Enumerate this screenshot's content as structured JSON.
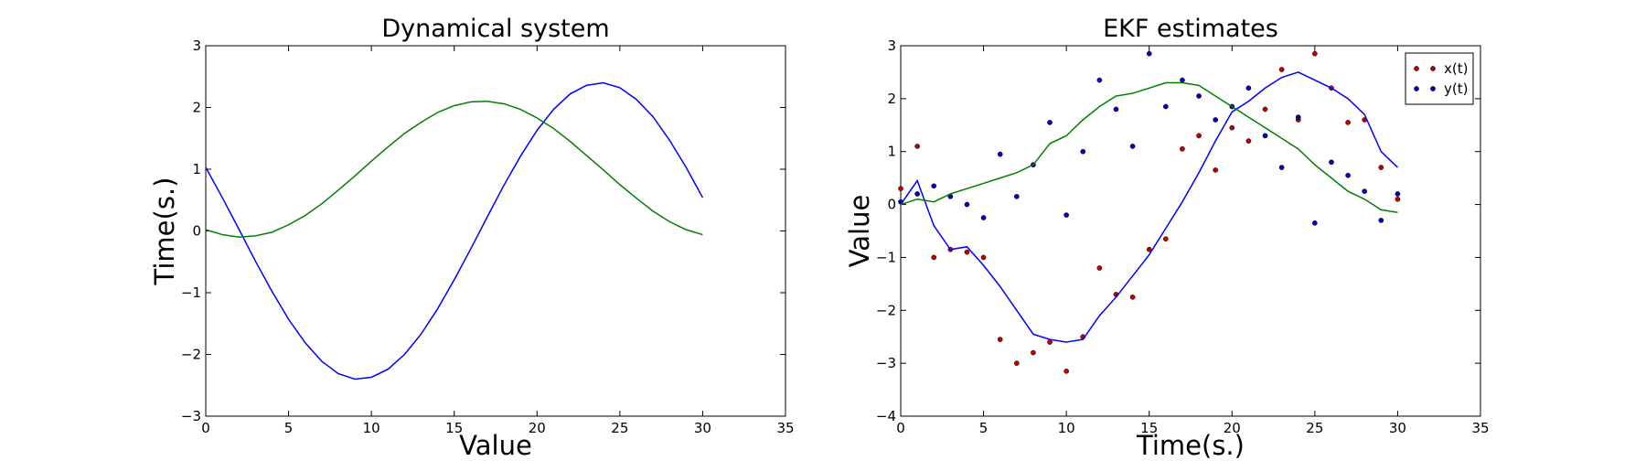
{
  "chart_data": [
    {
      "type": "line",
      "title": "Dynamical system",
      "xlabel": "Value",
      "ylabel": "Time(s.)",
      "x": [
        0,
        1,
        2,
        3,
        4,
        5,
        6,
        7,
        8,
        9,
        10,
        11,
        12,
        13,
        14,
        15,
        16,
        17,
        18,
        19,
        20,
        21,
        22,
        23,
        24,
        25,
        26,
        27,
        28,
        29,
        30
      ],
      "series": [
        {
          "color": "#0000ff",
          "values": [
            1.03,
            0.54,
            0.03,
            -0.49,
            -0.98,
            -1.43,
            -1.81,
            -2.11,
            -2.31,
            -2.4,
            -2.37,
            -2.24,
            -2.0,
            -1.67,
            -1.26,
            -0.79,
            -0.29,
            0.23,
            0.74,
            1.21,
            1.63,
            1.97,
            2.22,
            2.36,
            2.4,
            2.32,
            2.13,
            1.85,
            1.47,
            1.03,
            0.54
          ]
        },
        {
          "color": "#008000",
          "values": [
            0.02,
            -0.06,
            -0.1,
            -0.08,
            -0.02,
            0.1,
            0.25,
            0.44,
            0.66,
            0.89,
            1.13,
            1.36,
            1.58,
            1.76,
            1.92,
            2.03,
            2.09,
            2.1,
            2.06,
            1.97,
            1.83,
            1.66,
            1.45,
            1.22,
            0.99,
            0.75,
            0.53,
            0.32,
            0.15,
            0.02,
            -0.06
          ]
        }
      ],
      "xlim": [
        0,
        35
      ],
      "xticks": [
        0,
        5,
        10,
        15,
        20,
        25,
        30,
        35
      ],
      "ylim": [
        -3,
        3
      ],
      "yticks": [
        {
          "value": -3,
          "label": "−3"
        },
        {
          "value": -2,
          "label": "−2"
        },
        {
          "value": -1,
          "label": "−1"
        },
        0,
        1,
        2,
        3
      ]
    },
    {
      "type": "scatter",
      "title": "EKF estimates",
      "xlabel": "Time(s.)",
      "ylabel": "Value",
      "x": [
        0,
        1,
        2,
        3,
        4,
        5,
        6,
        7,
        8,
        9,
        10,
        11,
        12,
        13,
        14,
        15,
        16,
        17,
        18,
        19,
        20,
        21,
        22,
        23,
        24,
        25,
        26,
        27,
        28,
        29,
        30
      ],
      "series": [
        {
          "name": "x(t)",
          "mode": "markers",
          "color": "#c00000",
          "values": [
            0.3,
            1.1,
            -1.0,
            -0.85,
            -0.9,
            -1.0,
            -2.55,
            -3.0,
            -2.8,
            -2.6,
            -3.15,
            -2.5,
            -1.2,
            -1.7,
            -1.75,
            -0.85,
            -0.65,
            1.05,
            1.3,
            0.65,
            1.45,
            1.2,
            1.8,
            2.55,
            1.6,
            2.85,
            2.2,
            1.55,
            1.6,
            0.7,
            0.1
          ]
        },
        {
          "name": "y(t)",
          "mode": "markers",
          "color": "#0000c0",
          "values": [
            0.05,
            0.2,
            0.35,
            0.15,
            0.0,
            -0.25,
            0.95,
            0.15,
            0.75,
            1.55,
            -0.2,
            1.0,
            2.35,
            1.8,
            1.1,
            2.85,
            1.85,
            2.35,
            2.05,
            1.6,
            1.85,
            2.2,
            1.3,
            0.7,
            1.65,
            -0.35,
            0.8,
            0.55,
            0.25,
            -0.3,
            0.2
          ]
        },
        {
          "mode": "line",
          "color": "#0000ff",
          "values": [
            0.0,
            0.45,
            -0.4,
            -0.85,
            -0.8,
            -1.15,
            -1.55,
            -2.0,
            -2.45,
            -2.55,
            -2.6,
            -2.55,
            -2.1,
            -1.75,
            -1.35,
            -0.95,
            -0.45,
            0.05,
            0.6,
            1.2,
            1.75,
            1.95,
            2.2,
            2.4,
            2.5,
            2.35,
            2.2,
            2.0,
            1.7,
            1.0,
            0.7
          ]
        },
        {
          "mode": "line",
          "color": "#008000",
          "values": [
            0.0,
            0.1,
            0.05,
            0.2,
            0.3,
            0.4,
            0.5,
            0.6,
            0.75,
            1.15,
            1.3,
            1.6,
            1.85,
            2.05,
            2.1,
            2.2,
            2.3,
            2.3,
            2.25,
            2.05,
            1.85,
            1.65,
            1.45,
            1.25,
            1.05,
            0.75,
            0.5,
            0.25,
            0.1,
            -0.1,
            -0.15
          ]
        }
      ],
      "xlim": [
        0,
        35
      ],
      "xticks": [
        0,
        5,
        10,
        15,
        20,
        25,
        30,
        35
      ],
      "ylim": [
        -4,
        3
      ],
      "yticks": [
        {
          "value": -4,
          "label": "−4"
        },
        {
          "value": -3,
          "label": "−3"
        },
        {
          "value": -2,
          "label": "−2"
        },
        {
          "value": -1,
          "label": "−1"
        },
        0,
        1,
        2,
        3
      ],
      "legend": "upper right"
    }
  ]
}
